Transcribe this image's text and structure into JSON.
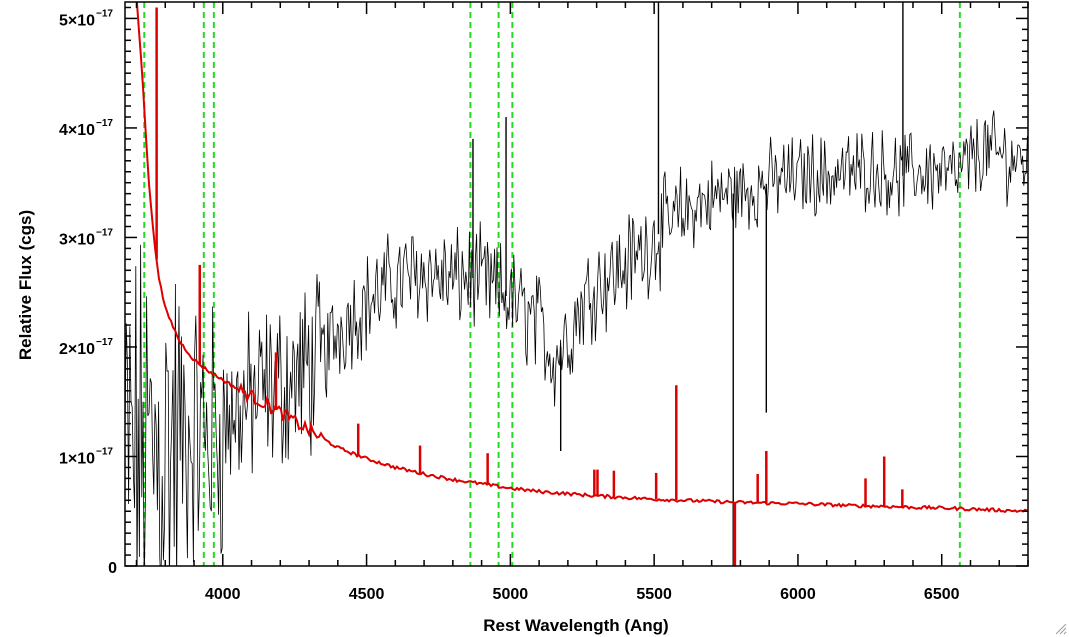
{
  "chart_data": {
    "type": "line",
    "xlabel": "Rest Wavelength (Ang)",
    "ylabel": "Relative Flux (cgs)",
    "xlim": [
      3660,
      6800
    ],
    "ylim": [
      0,
      5.15e-17
    ],
    "x_ticks": [
      {
        "value": 4000,
        "label": "4000"
      },
      {
        "value": 4500,
        "label": "4500"
      },
      {
        "value": 5000,
        "label": "5000"
      },
      {
        "value": 5500,
        "label": "5500"
      },
      {
        "value": 6000,
        "label": "6000"
      },
      {
        "value": 6500,
        "label": "6500"
      }
    ],
    "y_ticks": [
      {
        "value": 0,
        "label": "0",
        "exp": ""
      },
      {
        "value": 1e-17,
        "label": "1×10",
        "exp": "−17"
      },
      {
        "value": 2e-17,
        "label": "2×10",
        "exp": "−17"
      },
      {
        "value": 3e-17,
        "label": "3×10",
        "exp": "−17"
      },
      {
        "value": 4e-17,
        "label": "4×10",
        "exp": "−17"
      },
      {
        "value": 5e-17,
        "label": "5×10",
        "exp": "−17"
      }
    ],
    "vertical_lines": {
      "color": "#22dd22",
      "style": "dashed",
      "x": [
        3727,
        3934,
        3969,
        4861,
        4959,
        5007,
        6563
      ]
    },
    "series": [
      {
        "color": "#000000",
        "style": "noisy-spectrum",
        "x": [
          3660,
          3700,
          3750,
          3800,
          3850,
          3900,
          3950,
          4000,
          4050,
          4100,
          4150,
          4200,
          4250,
          4300,
          4350,
          4400,
          4450,
          4500,
          4550,
          4600,
          4650,
          4700,
          4750,
          4800,
          4850,
          4900,
          4950,
          5000,
          5050,
          5100,
          5150,
          5200,
          5250,
          5300,
          5350,
          5400,
          5450,
          5500,
          5550,
          5600,
          5650,
          5700,
          5750,
          5800,
          5850,
          5900,
          5950,
          6000,
          6050,
          6100,
          6150,
          6200,
          6250,
          6300,
          6350,
          6400,
          6450,
          6500,
          6550,
          6600,
          6650,
          6700,
          6750,
          6800
        ],
        "y": [
          1e-17,
          1e-17,
          1e-17,
          1.1e-17,
          1.1e-17,
          1.2e-17,
          1.2e-17,
          1.3e-17,
          1.4e-17,
          1.5e-17,
          1.6e-17,
          1.65e-17,
          1.7e-17,
          1.8e-17,
          1.9e-17,
          2.15e-17,
          2.3e-17,
          2.4e-17,
          2.5e-17,
          2.6e-17,
          2.65e-17,
          2.7e-17,
          2.65e-17,
          2.6e-17,
          2.65e-17,
          2.6e-17,
          2.5e-17,
          2.45e-17,
          2.3e-17,
          2.2e-17,
          1.9e-17,
          2.1e-17,
          2.4e-17,
          2.6e-17,
          2.65e-17,
          2.75e-17,
          2.85e-17,
          3e-17,
          3.1e-17,
          3.2e-17,
          3.3e-17,
          3.35e-17,
          3.4e-17,
          3.4e-17,
          3.45e-17,
          3.5e-17,
          3.55e-17,
          3.55e-17,
          3.6e-17,
          3.55e-17,
          3.6e-17,
          3.6e-17,
          3.65e-17,
          3.6e-17,
          3.55e-17,
          3.6e-17,
          3.6e-17,
          3.6e-17,
          3.55e-17,
          3.7e-17,
          3.8e-17,
          3.75e-17,
          3.7e-17,
          3.7e-17
        ]
      },
      {
        "color": "#dd0000",
        "style": "smooth",
        "x": [
          3660,
          3700,
          3720,
          3740,
          3760,
          3780,
          3800,
          3850,
          3900,
          3950,
          4000,
          4050,
          4100,
          4150,
          4200,
          4300,
          4400,
          4500,
          4600,
          4700,
          4800,
          4900,
          5000,
          5100,
          5200,
          5300,
          5400,
          5500,
          5600,
          5700,
          5800,
          5900,
          6000,
          6100,
          6200,
          6300,
          6400,
          6500,
          6600,
          6700,
          6800
        ],
        "y": [
          6e-17,
          5.2e-17,
          4.5e-17,
          3.6e-17,
          3e-17,
          2.6e-17,
          2.35e-17,
          2.05e-17,
          1.88e-17,
          1.78e-17,
          1.7e-17,
          1.62e-17,
          1.55e-17,
          1.48e-17,
          1.4e-17,
          1.24e-17,
          1.08e-17,
          9.8e-18,
          9e-18,
          8.4e-18,
          7.9e-18,
          7.5e-18,
          7.1e-18,
          6.8e-18,
          6.6e-18,
          6.4e-18,
          6.25e-18,
          6.1e-18,
          6e-18,
          5.9e-18,
          5.8e-18,
          5.75e-18,
          5.7e-18,
          5.6e-18,
          5.5e-18,
          5.45e-18,
          5.35e-18,
          5.3e-18,
          5.2e-18,
          5.1e-18,
          5e-18
        ]
      }
    ],
    "red_spikes": [
      {
        "x": 3770,
        "y": 5.1e-17
      },
      {
        "x": 3920,
        "y": 2.75e-17
      },
      {
        "x": 4185,
        "y": 1.95e-17
      },
      {
        "x": 4471,
        "y": 1.3e-17
      },
      {
        "x": 4686,
        "y": 1.1e-17
      },
      {
        "x": 4921,
        "y": 1.03e-17
      },
      {
        "x": 5292,
        "y": 8.8e-18
      },
      {
        "x": 5303,
        "y": 8.8e-18
      },
      {
        "x": 5360,
        "y": 8.7e-18
      },
      {
        "x": 5507,
        "y": 8.5e-18
      },
      {
        "x": 5577,
        "y": 1.65e-17
      },
      {
        "x": 5860,
        "y": 8.4e-18
      },
      {
        "x": 5890,
        "y": 1.05e-17
      },
      {
        "x": 6235,
        "y": 8e-18
      },
      {
        "x": 6300,
        "y": 1e-17
      },
      {
        "x": 6363,
        "y": 7e-18
      }
    ],
    "red_dip": {
      "x": 5780,
      "y": 0
    },
    "black_spikes_up": [
      {
        "x": 4870,
        "y": 3.9e-17
      },
      {
        "x": 4985,
        "y": 4.1e-17
      },
      {
        "x": 5515,
        "y": 5.2e-17
      },
      {
        "x": 6365,
        "y": 5.2e-17
      }
    ],
    "black_spikes_down": [
      {
        "x": 5175,
        "y": 1.05e-17
      },
      {
        "x": 5775,
        "y": 0
      },
      {
        "x": 5890,
        "y": 1.4e-17
      }
    ]
  }
}
